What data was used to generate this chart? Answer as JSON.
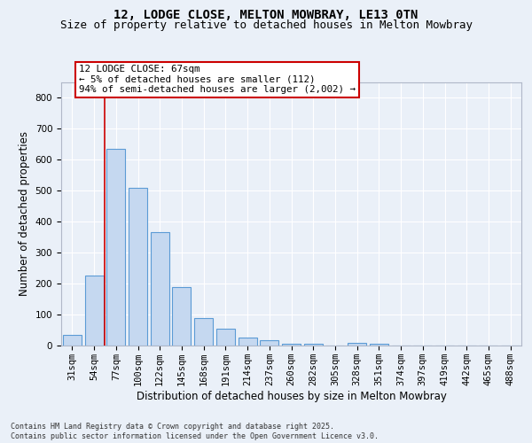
{
  "title": "12, LODGE CLOSE, MELTON MOWBRAY, LE13 0TN",
  "subtitle": "Size of property relative to detached houses in Melton Mowbray",
  "xlabel": "Distribution of detached houses by size in Melton Mowbray",
  "ylabel": "Number of detached properties",
  "categories": [
    "31sqm",
    "54sqm",
    "77sqm",
    "100sqm",
    "122sqm",
    "145sqm",
    "168sqm",
    "191sqm",
    "214sqm",
    "237sqm",
    "260sqm",
    "282sqm",
    "305sqm",
    "328sqm",
    "351sqm",
    "374sqm",
    "397sqm",
    "419sqm",
    "442sqm",
    "465sqm",
    "488sqm"
  ],
  "values": [
    35,
    225,
    635,
    510,
    365,
    190,
    88,
    55,
    25,
    18,
    5,
    5,
    0,
    8,
    7,
    0,
    0,
    0,
    0,
    0,
    0
  ],
  "bar_color": "#c5d8f0",
  "bar_edge_color": "#5b9bd5",
  "vline_x": 1.5,
  "vline_color": "#cc0000",
  "annotation_text": "12 LODGE CLOSE: 67sqm\n← 5% of detached houses are smaller (112)\n94% of semi-detached houses are larger (2,002) →",
  "annotation_box_color": "#cc0000",
  "ylim": [
    0,
    850
  ],
  "yticks": [
    0,
    100,
    200,
    300,
    400,
    500,
    600,
    700,
    800
  ],
  "background_color": "#eaf0f8",
  "plot_bg_color": "#eaf0f8",
  "footer_text": "Contains HM Land Registry data © Crown copyright and database right 2025.\nContains public sector information licensed under the Open Government Licence v3.0.",
  "title_fontsize": 10,
  "subtitle_fontsize": 9,
  "axis_label_fontsize": 8.5,
  "tick_fontsize": 7.5,
  "footer_fontsize": 6.0
}
